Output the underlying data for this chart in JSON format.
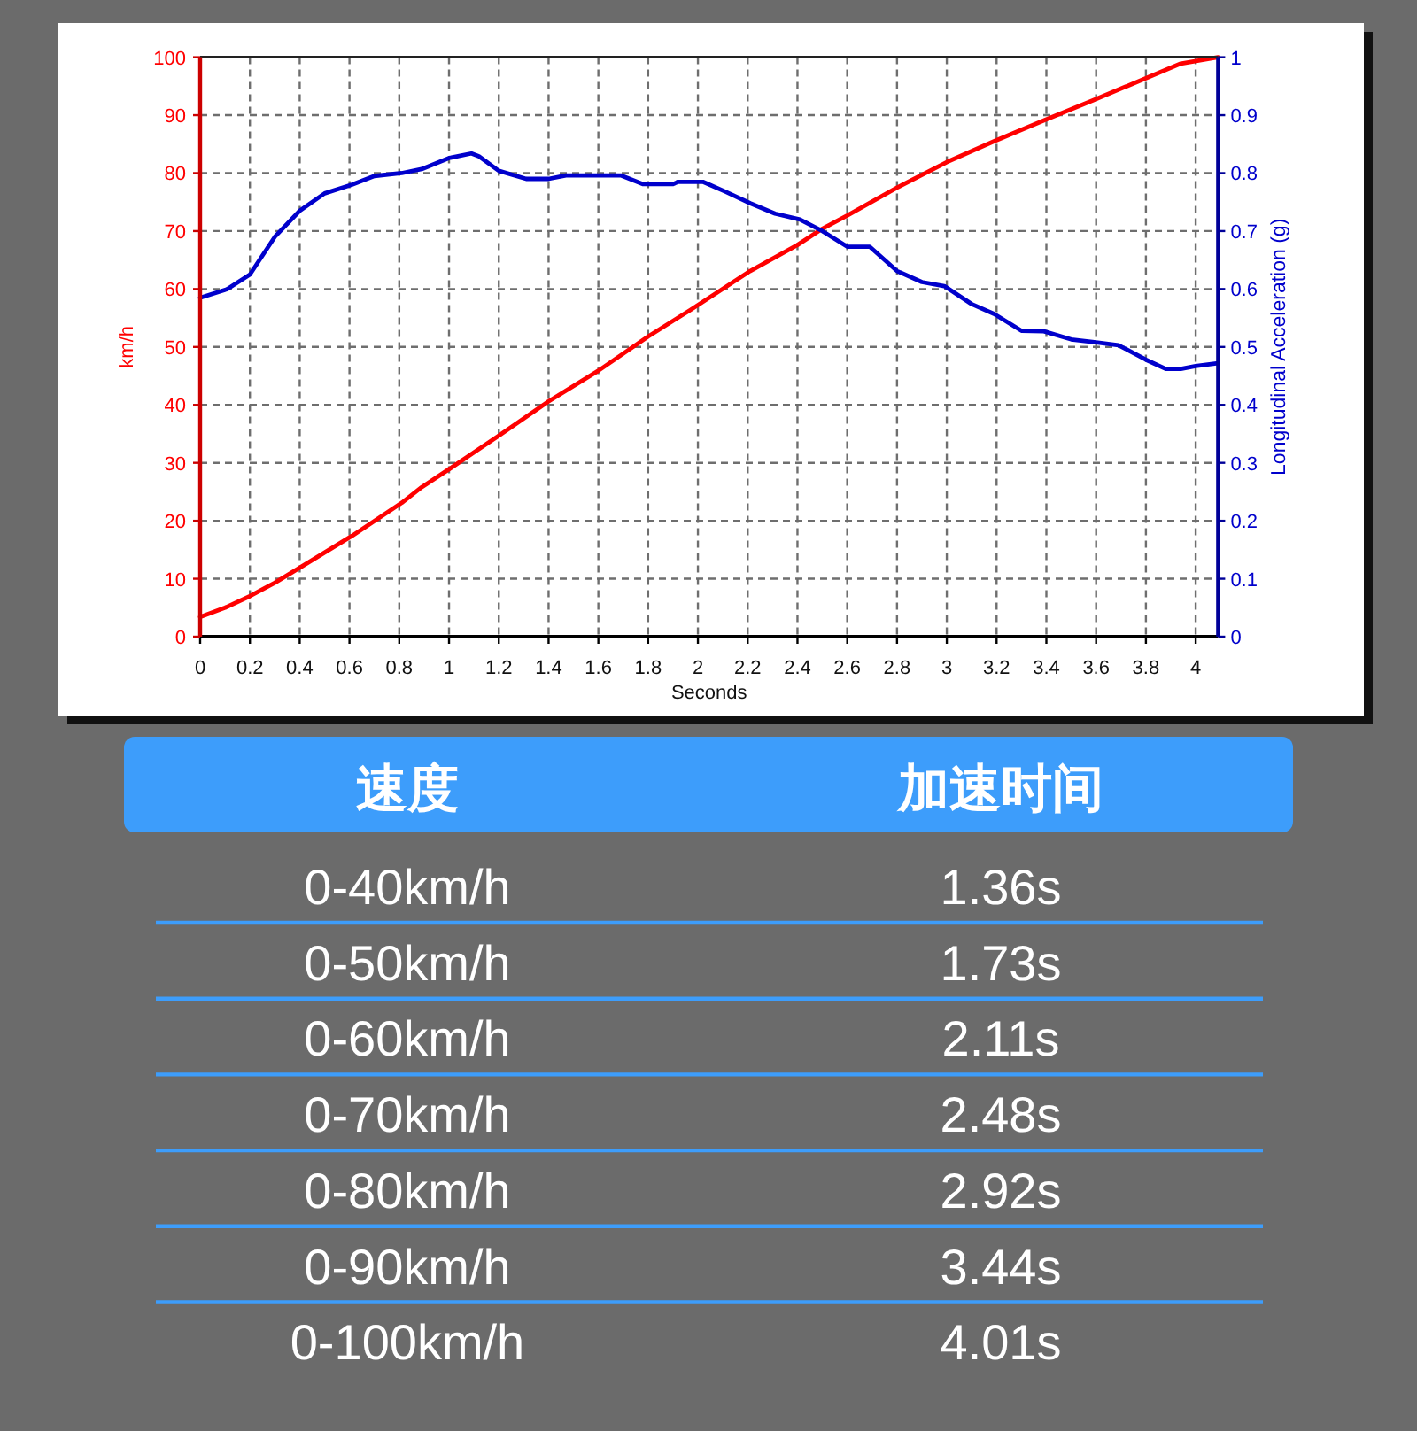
{
  "chart_data": [
    {
      "type": "line",
      "xlabel": "Seconds",
      "ylabel": "km/h",
      "y2label": "Longitudinal Acceleration (g)",
      "series": [
        {
          "color": "#ff0000",
          "x": [
            0,
            0.1,
            0.2,
            0.3,
            0.4,
            0.61,
            0.81,
            0.89,
            1.0,
            1.2,
            1.4,
            1.6,
            1.8,
            1.97,
            2.21,
            2.4,
            2.5,
            2.6,
            2.8,
            3.0,
            3.19,
            3.39,
            3.59,
            3.79,
            3.94,
            4.09
          ],
          "values": [
            3.4,
            5.0,
            7.0,
            9.3,
            11.9,
            17.4,
            23.1,
            25.8,
            28.9,
            34.7,
            40.6,
            45.9,
            51.8,
            56.4,
            63.1,
            67.6,
            70.4,
            72.7,
            77.5,
            81.9,
            85.5,
            89.1,
            92.6,
            96.2,
            98.9,
            100
          ]
        },
        {
          "color": "#0000cc",
          "axis": "y2",
          "x": [
            0,
            0.11,
            0.2,
            0.3,
            0.4,
            0.5,
            0.61,
            0.7,
            0.81,
            0.89,
            1.0,
            1.09,
            1.12,
            1.2,
            1.31,
            1.4,
            1.47,
            1.69,
            1.78,
            1.9,
            1.92,
            2.02,
            2.11,
            2.21,
            2.31,
            2.41,
            2.5,
            2.6,
            2.69,
            2.8,
            2.9,
            2.99,
            3.1,
            3.19,
            3.3,
            3.39,
            3.5,
            3.6,
            3.69,
            3.8,
            3.88,
            3.94,
            4.0,
            4.09
          ],
          "values": [
            0.585,
            0.6,
            0.625,
            0.69,
            0.735,
            0.765,
            0.78,
            0.795,
            0.8,
            0.807,
            0.826,
            0.834,
            0.829,
            0.804,
            0.79,
            0.79,
            0.796,
            0.796,
            0.781,
            0.781,
            0.785,
            0.785,
            0.768,
            0.748,
            0.73,
            0.72,
            0.7,
            0.673,
            0.673,
            0.631,
            0.612,
            0.605,
            0.574,
            0.557,
            0.528,
            0.527,
            0.513,
            0.508,
            0.503,
            0.478,
            0.462,
            0.462,
            0.467,
            0.472
          ]
        }
      ],
      "xlim": [
        0,
        4.09
      ],
      "xticks": [
        0,
        0.2,
        0.4,
        0.6,
        0.8,
        1,
        1.2,
        1.4,
        1.6,
        1.8,
        2,
        2.2,
        2.4,
        2.6,
        2.8,
        3,
        3.2,
        3.4,
        3.6,
        3.8,
        4
      ],
      "ylim": [
        0,
        100
      ],
      "yticks": [
        0,
        10,
        20,
        30,
        40,
        50,
        60,
        70,
        80,
        90,
        100
      ],
      "y2lim": [
        0,
        1
      ],
      "y2ticks": [
        0,
        0.1,
        0.2,
        0.3,
        0.4,
        0.5,
        0.6,
        0.7,
        0.8,
        0.9,
        1
      ],
      "grid": true
    },
    {
      "type": "other",
      "annotations": [
        "速度",
        "加速时间",
        "0-40km/h",
        "1.36s",
        "0-50km/h",
        "1.73s",
        "0-60km/h",
        "2.11s",
        "0-70km/h",
        "2.48s",
        "0-80km/h",
        "2.92s",
        "0-90km/h",
        "3.44s",
        "0-100km/h",
        "4.01s"
      ]
    }
  ]
}
